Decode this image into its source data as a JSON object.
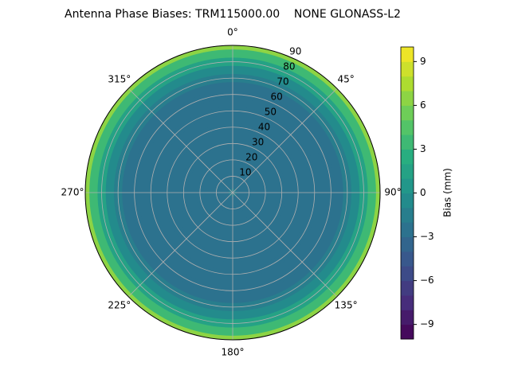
{
  "chart_data": {
    "type": "polar_contour",
    "title": "Antenna Phase Biases: TRM115000.00    NONE GLONASS-L2",
    "colorbar_label": "Bias (mm)",
    "colormap": "viridis",
    "x": [
      0,
      5,
      10,
      15,
      20,
      25,
      30,
      35,
      40,
      45,
      50,
      55,
      60,
      65,
      70,
      75,
      80,
      85,
      90
    ],
    "values": [
      -2,
      -2.2,
      -2.5,
      -2.7,
      -2.8,
      -3,
      -3,
      -3,
      -3,
      -3,
      -3,
      -2.8,
      -2.5,
      -2.2,
      -1.5,
      -0.5,
      1,
      3,
      6
    ],
    "rlim": [
      0,
      90
    ],
    "rticks": [
      10,
      20,
      30,
      40,
      50,
      60,
      70,
      80,
      90
    ],
    "thetaticks": [
      {
        "value": 0,
        "label": "0°"
      },
      {
        "value": 45,
        "label": "45°"
      },
      {
        "value": 90,
        "label": "90°"
      },
      {
        "value": 135,
        "label": "135°"
      },
      {
        "value": 180,
        "label": "180°"
      },
      {
        "value": 225,
        "label": "225°"
      },
      {
        "value": 270,
        "label": "270°"
      },
      {
        "value": 315,
        "label": "315°"
      }
    ],
    "clim": [
      -10,
      10
    ],
    "color_levels": 20,
    "cticks": [
      {
        "value": -9,
        "label": "−9"
      },
      {
        "value": -6,
        "label": "−6"
      },
      {
        "value": -3,
        "label": "−3"
      },
      0,
      3,
      6,
      9
    ],
    "grid": true
  }
}
